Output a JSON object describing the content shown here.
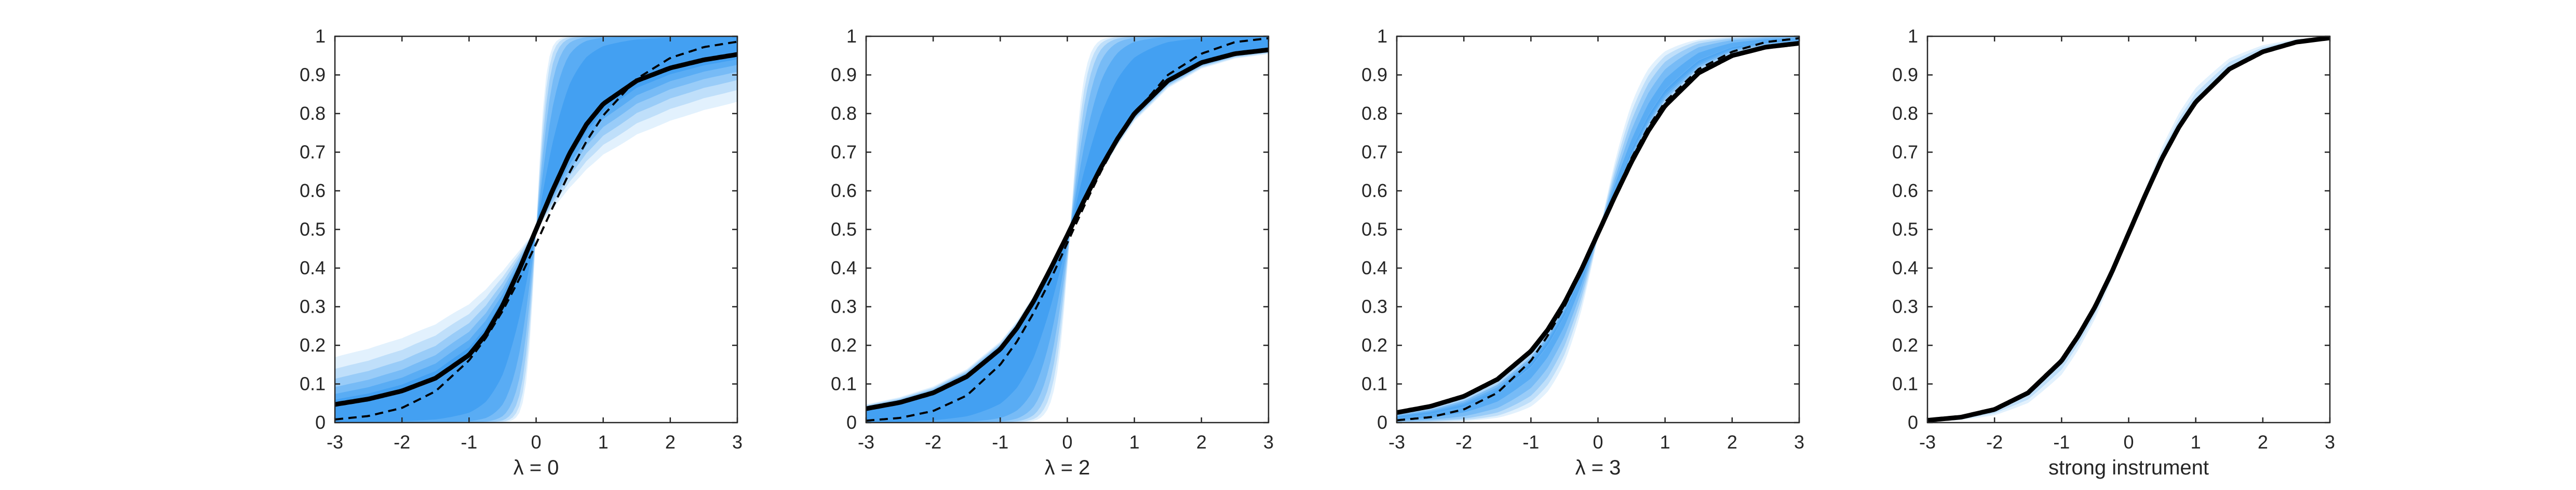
{
  "figure": {
    "panel_count": 4,
    "colors": {
      "band": "#1f8ff0",
      "median_line": "#000000",
      "reference_line": "#000000",
      "axes": "#262626",
      "background": "#ffffff"
    }
  },
  "chart_data": [
    {
      "type": "line",
      "title": "",
      "xlabel": "λ = 0",
      "ylabel": "",
      "xlim": [
        -3,
        3
      ],
      "ylim": [
        0,
        1
      ],
      "xticks": [
        -3,
        -2,
        -1,
        0,
        1,
        2,
        3
      ],
      "yticks": [
        0,
        0.1,
        0.2,
        0.3,
        0.4,
        0.5,
        0.6,
        0.7,
        0.8,
        0.9,
        1
      ],
      "grid": false,
      "legend": "none",
      "x": [
        -3,
        -2.5,
        -2,
        -1.5,
        -1,
        -0.75,
        -0.5,
        -0.25,
        0,
        0.25,
        0.5,
        0.75,
        1,
        1.5,
        2,
        2.5,
        3
      ],
      "series": [
        {
          "style": "solid-thick",
          "values": [
            0.047,
            0.061,
            0.082,
            0.115,
            0.175,
            0.228,
            0.303,
            0.397,
            0.5,
            0.603,
            0.697,
            0.772,
            0.825,
            0.885,
            0.918,
            0.939,
            0.953
          ]
        },
        {
          "style": "dashed",
          "values": [
            0.008,
            0.017,
            0.038,
            0.081,
            0.161,
            0.219,
            0.289,
            0.372,
            0.463,
            0.558,
            0.648,
            0.728,
            0.795,
            0.89,
            0.944,
            0.972,
            0.986
          ]
        }
      ],
      "band": {
        "description": "shaded simulation draws",
        "levels": [
          1,
          2,
          3,
          4,
          5,
          6
        ]
      }
    },
    {
      "type": "line",
      "title": "",
      "xlabel": "λ = 2",
      "ylabel": "",
      "xlim": [
        -3,
        3
      ],
      "ylim": [
        0,
        1
      ],
      "xticks": [
        -3,
        -2,
        -1,
        0,
        1,
        2,
        3
      ],
      "yticks": [
        0,
        0.1,
        0.2,
        0.3,
        0.4,
        0.5,
        0.6,
        0.7,
        0.8,
        0.9,
        1
      ],
      "grid": false,
      "legend": "none",
      "x": [
        -3,
        -2.5,
        -2,
        -1.5,
        -1,
        -0.75,
        -0.5,
        -0.25,
        0,
        0.25,
        0.5,
        0.75,
        1,
        1.5,
        2,
        2.5,
        3
      ],
      "series": [
        {
          "style": "solid-thick",
          "values": [
            0.036,
            0.052,
            0.077,
            0.119,
            0.19,
            0.245,
            0.315,
            0.398,
            0.485,
            0.575,
            0.66,
            0.735,
            0.8,
            0.885,
            0.932,
            0.955,
            0.965
          ]
        },
        {
          "style": "dashed",
          "values": [
            0.005,
            0.012,
            0.03,
            0.07,
            0.15,
            0.21,
            0.285,
            0.37,
            0.465,
            0.56,
            0.65,
            0.73,
            0.8,
            0.9,
            0.955,
            0.985,
            0.995
          ]
        }
      ],
      "band": {
        "description": "shaded simulation draws",
        "levels": [
          1,
          2,
          3,
          4,
          5,
          6
        ]
      }
    },
    {
      "type": "line",
      "title": "",
      "xlabel": "λ = 3",
      "ylabel": "",
      "xlim": [
        -3,
        3
      ],
      "ylim": [
        0,
        1
      ],
      "xticks": [
        -3,
        -2,
        -1,
        0,
        1,
        2,
        3
      ],
      "yticks": [
        0,
        0.1,
        0.2,
        0.3,
        0.4,
        0.5,
        0.6,
        0.7,
        0.8,
        0.9,
        1
      ],
      "grid": false,
      "legend": "none",
      "x": [
        -3,
        -2.5,
        -2,
        -1.5,
        -1,
        -0.75,
        -0.5,
        -0.25,
        0,
        0.25,
        0.5,
        0.75,
        1,
        1.5,
        2,
        2.5,
        3
      ],
      "series": [
        {
          "style": "solid-thick",
          "values": [
            0.026,
            0.042,
            0.068,
            0.112,
            0.185,
            0.24,
            0.31,
            0.395,
            0.49,
            0.585,
            0.675,
            0.755,
            0.82,
            0.905,
            0.95,
            0.972,
            0.982
          ]
        },
        {
          "style": "dashed",
          "values": [
            0.006,
            0.014,
            0.034,
            0.077,
            0.16,
            0.225,
            0.3,
            0.39,
            0.49,
            0.59,
            0.685,
            0.765,
            0.83,
            0.915,
            0.96,
            0.985,
            0.995
          ]
        }
      ],
      "band": {
        "description": "shaded simulation draws",
        "levels": [
          1,
          2,
          3,
          4,
          5,
          6
        ]
      }
    },
    {
      "type": "line",
      "title": "",
      "xlabel": "strong instrument",
      "ylabel": "",
      "xlim": [
        -3,
        3
      ],
      "ylim": [
        0,
        1
      ],
      "xticks": [
        -3,
        -2,
        -1,
        0,
        1,
        2,
        3
      ],
      "yticks": [
        0,
        0.1,
        0.2,
        0.3,
        0.4,
        0.5,
        0.6,
        0.7,
        0.8,
        0.9,
        1
      ],
      "grid": false,
      "legend": "none",
      "x": [
        -3,
        -2.5,
        -2,
        -1.5,
        -1,
        -0.75,
        -0.5,
        -0.25,
        0,
        0.25,
        0.5,
        0.75,
        1,
        1.5,
        2,
        2.5,
        3
      ],
      "series": [
        {
          "style": "solid-thick",
          "values": [
            0.006,
            0.014,
            0.034,
            0.077,
            0.16,
            0.225,
            0.3,
            0.39,
            0.49,
            0.59,
            0.685,
            0.765,
            0.83,
            0.915,
            0.96,
            0.985,
            0.996
          ]
        }
      ],
      "band": {
        "description": "shaded simulation draws",
        "levels": [
          1,
          2,
          3
        ]
      }
    }
  ]
}
